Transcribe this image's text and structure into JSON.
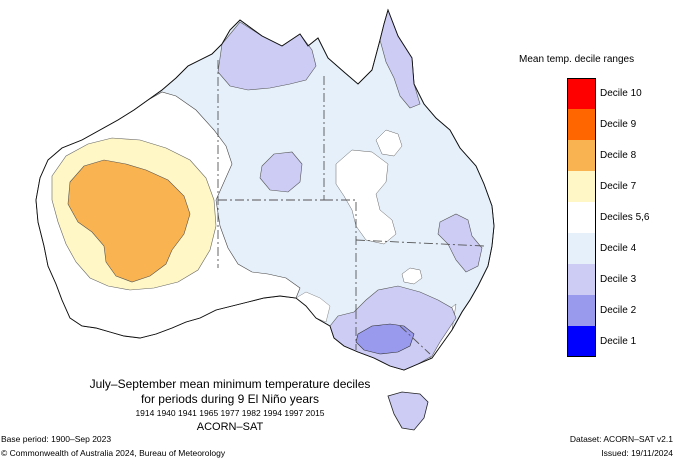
{
  "legend": {
    "title": "Mean temp. decile ranges",
    "items": [
      {
        "label": "Decile 10",
        "color": "#ff0000"
      },
      {
        "label": "Decile 9",
        "color": "#ff6600"
      },
      {
        "label": "Decile 8",
        "color": "#f9b350"
      },
      {
        "label": "Decile 7",
        "color": "#fff7c6"
      },
      {
        "label": "Deciles 5,6",
        "color": "#ffffff"
      },
      {
        "label": "Decile 4",
        "color": "#e6f0fa"
      },
      {
        "label": "Decile 3",
        "color": "#ccccf5"
      },
      {
        "label": "Decile 2",
        "color": "#9999ee"
      },
      {
        "label": "Decile 1",
        "color": "#0000ff"
      }
    ]
  },
  "title": {
    "line1": "July–September mean minimum temperature deciles",
    "line2": "for periods during 9 El Niño years",
    "years": "1914 1940 1941 1965 1977 1982 1994 1997 2015",
    "dataset": "ACORN–SAT"
  },
  "footer": {
    "base_period": "Base period: 1900–Sep 2023",
    "copyright": "© Commonwealth of Australia 2024, Bureau of Meteorology",
    "dataset_version": "Dataset: ACORN–SAT v2.1",
    "issued": "Issued: 19/11/2024"
  }
}
